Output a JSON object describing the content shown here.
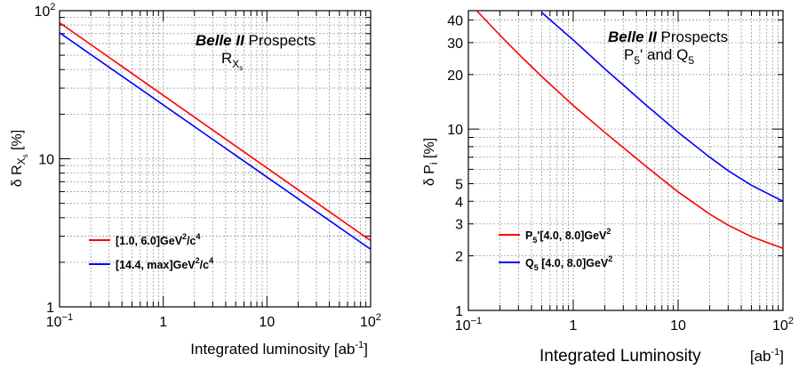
{
  "chart_data": [
    {
      "type": "line",
      "log_x": true,
      "log_y": true,
      "xlim": [
        0.1,
        100
      ],
      "ylim": [
        1,
        100
      ],
      "grid": true,
      "legend_position": "bottom-left",
      "title_line1_bold": "Belle II",
      "title_line1_rest": " Prospects",
      "title_line2_main": "R",
      "title_line2_sub": "X",
      "title_line2_subsub": "s",
      "ylabel_main": "δ R",
      "ylabel_sub": "X",
      "ylabel_subsub": "s",
      "ylabel_unit": " [%]",
      "xlabel_main": "Integrated luminosity [ab",
      "xlabel_sup": "-1",
      "xlabel_end": "]",
      "x_ticks": [
        {
          "value": 0.1,
          "base": "10",
          "exp": "−1"
        },
        {
          "value": 1,
          "base": "1",
          "exp": ""
        },
        {
          "value": 10,
          "base": "10",
          "exp": ""
        },
        {
          "value": 100,
          "base": "10",
          "exp": "2"
        }
      ],
      "y_ticks": [
        {
          "value": 1,
          "base": "1",
          "exp": ""
        },
        {
          "value": 10,
          "base": "10",
          "exp": ""
        },
        {
          "value": 100,
          "base": "10",
          "exp": "2"
        }
      ],
      "series": [
        {
          "legend_parts": [
            [
              "[1.0, 6.0]GeV",
              ""
            ],
            [
              "2",
              "sup"
            ],
            [
              "/c",
              ""
            ],
            [
              "4",
              "sup"
            ]
          ],
          "color": "#ff0000",
          "x": [
            0.1,
            100
          ],
          "y": [
            83,
            2.8
          ]
        },
        {
          "legend_parts": [
            [
              "[14.4, max]GeV",
              ""
            ],
            [
              "2",
              "sup"
            ],
            [
              "/c",
              ""
            ],
            [
              "4",
              "sup"
            ]
          ],
          "color": "#0000ff",
          "x": [
            0.1,
            100
          ],
          "y": [
            71,
            2.45
          ]
        }
      ]
    },
    {
      "type": "line",
      "log_x": true,
      "log_y": true,
      "xlim": [
        0.1,
        100
      ],
      "ylim": [
        1,
        45
      ],
      "grid": true,
      "legend_position": "bottom-left",
      "title_line1_bold": "Belle II",
      "title_line1_rest": " Prospects",
      "title_line2_main": "P",
      "title_line2_sub": "5",
      "title_line2_rest": "' and Q",
      "title_line2_sub2": "5",
      "ylabel_main": "δ P",
      "ylabel_sub": "i",
      "ylabel_unit": " [%]",
      "xlabel_main": "Integrated Luminosity",
      "xlabel_unit": "[ab",
      "xlabel_sup": "-1",
      "xlabel_end": "]",
      "x_ticks": [
        {
          "value": 0.1,
          "base": "10",
          "exp": "−1"
        },
        {
          "value": 1,
          "base": "1",
          "exp": ""
        },
        {
          "value": 10,
          "base": "10",
          "exp": ""
        },
        {
          "value": 100,
          "base": "10",
          "exp": "2"
        }
      ],
      "y_ticks": [
        {
          "value": 1,
          "base": "1",
          "exp": ""
        },
        {
          "value": 2,
          "base": "2",
          "exp": ""
        },
        {
          "value": 3,
          "base": "3",
          "exp": ""
        },
        {
          "value": 4,
          "base": "4",
          "exp": ""
        },
        {
          "value": 5,
          "base": "5",
          "exp": ""
        },
        {
          "value": 10,
          "base": "10",
          "exp": ""
        },
        {
          "value": 20,
          "base": "20",
          "exp": ""
        },
        {
          "value": 30,
          "base": "30",
          "exp": ""
        },
        {
          "value": 40,
          "base": "40",
          "exp": ""
        }
      ],
      "series": [
        {
          "legend_parts": [
            [
              "P",
              ""
            ],
            [
              "5",
              "sub"
            ],
            [
              "'[4.0, 8.0]GeV",
              ""
            ],
            [
              "2",
              "sup"
            ]
          ],
          "color": "#ff0000",
          "x": [
            0.12,
            0.2,
            0.3,
            0.5,
            1,
            2,
            3,
            5,
            10,
            20,
            30,
            50,
            100
          ],
          "y": [
            45,
            33,
            26,
            19.5,
            13.5,
            9.6,
            7.9,
            6.2,
            4.5,
            3.4,
            2.95,
            2.55,
            2.2
          ]
        },
        {
          "legend_parts": [
            [
              "Q",
              ""
            ],
            [
              "5",
              "sub"
            ],
            [
              " [4.0, 8.0]GeV",
              ""
            ],
            [
              "2",
              "sup"
            ]
          ],
          "color": "#0000ff",
          "x": [
            0.5,
            1,
            2,
            3,
            5,
            10,
            20,
            30,
            50,
            100
          ],
          "y": [
            44,
            31,
            21.5,
            17.5,
            13.5,
            9.6,
            7,
            5.9,
            4.9,
            4.0
          ]
        }
      ]
    }
  ]
}
